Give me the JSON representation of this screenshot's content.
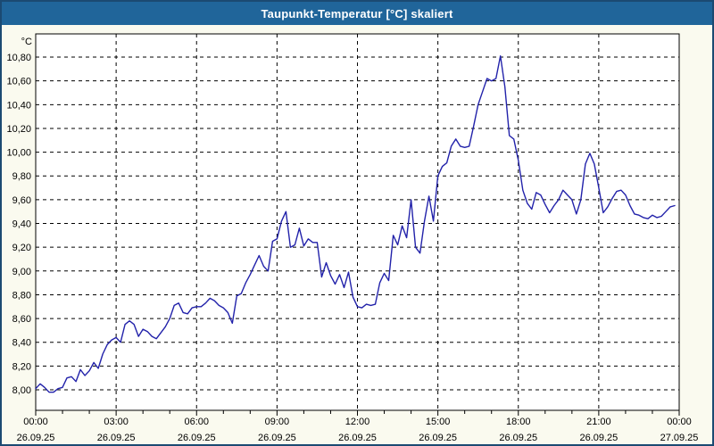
{
  "window": {
    "title": "Taupunkt-Temperatur [°C] skaliert"
  },
  "colors": {
    "titlebar_bg": "#20659a",
    "window_border": "#1b4a72",
    "background": "#fafaef",
    "plot_background": "#ffffff",
    "line_color": "#2222aa",
    "grid_color": "#000000",
    "label_color": "#000000",
    "title_text_color": "#ffffff"
  },
  "y_axis": {
    "unit_label": "°C",
    "min": 8.0,
    "max": 10.8,
    "step": 0.2,
    "tick_labels": [
      "8,00",
      "8,20",
      "8,40",
      "8,60",
      "8,80",
      "9,00",
      "9,20",
      "9,40",
      "9,60",
      "9,80",
      "10,00",
      "10,20",
      "10,40",
      "10,60",
      "10,80"
    ]
  },
  "x_axis": {
    "range_hours": 24,
    "major_step_hours": 3,
    "minor_step_hours": 1,
    "major": [
      {
        "time": "00:00",
        "date": "26.09.25"
      },
      {
        "time": "03:00",
        "date": "26.09.25"
      },
      {
        "time": "06:00",
        "date": "26.09.25"
      },
      {
        "time": "09:00",
        "date": "26.09.25"
      },
      {
        "time": "12:00",
        "date": "26.09.25"
      },
      {
        "time": "15:00",
        "date": "26.09.25"
      },
      {
        "time": "18:00",
        "date": "26.09.25"
      },
      {
        "time": "21:00",
        "date": "26.09.25"
      },
      {
        "time": "00:00",
        "date": "27.09.25"
      }
    ]
  },
  "chart_data": {
    "type": "line",
    "title": "Taupunkt-Temperatur [°C] skaliert",
    "xlabel": "",
    "ylabel": "°C",
    "ylim": [
      8.0,
      10.8
    ],
    "xlim_hours": [
      0,
      24
    ],
    "grid": true,
    "legend": "none",
    "x_start_hours": 0,
    "x_step_minutes": 10,
    "x_end_hours": 23.83,
    "series": [
      {
        "name": "Taupunkt-Temperatur",
        "color": "#2222aa",
        "values": [
          8.01,
          8.05,
          8.02,
          7.98,
          7.98,
          8.01,
          8.02,
          8.1,
          8.11,
          8.07,
          8.17,
          8.12,
          8.16,
          8.23,
          8.18,
          8.3,
          8.38,
          8.42,
          8.44,
          8.4,
          8.55,
          8.58,
          8.55,
          8.45,
          8.51,
          8.49,
          8.45,
          8.43,
          8.48,
          8.53,
          8.6,
          8.71,
          8.73,
          8.65,
          8.64,
          8.69,
          8.7,
          8.7,
          8.73,
          8.77,
          8.75,
          8.71,
          8.69,
          8.65,
          8.56,
          8.79,
          8.81,
          8.9,
          8.97,
          9.05,
          9.13,
          9.04,
          9.0,
          9.25,
          9.27,
          9.42,
          9.5,
          9.2,
          9.22,
          9.36,
          9.21,
          9.27,
          9.24,
          9.24,
          8.95,
          9.07,
          8.96,
          8.89,
          8.97,
          8.86,
          8.99,
          8.78,
          8.7,
          8.69,
          8.72,
          8.71,
          8.72,
          8.9,
          8.98,
          8.92,
          9.3,
          9.22,
          9.38,
          9.28,
          9.6,
          9.2,
          9.15,
          9.42,
          9.63,
          9.42,
          9.8,
          9.88,
          9.91,
          10.05,
          10.11,
          10.05,
          10.04,
          10.05,
          10.22,
          10.4,
          10.51,
          10.62,
          10.6,
          10.62,
          10.81,
          10.55,
          10.14,
          10.11,
          9.93,
          9.68,
          9.57,
          9.52,
          9.66,
          9.64,
          9.56,
          9.49,
          9.55,
          9.6,
          9.68,
          9.64,
          9.6,
          9.48,
          9.6,
          9.9,
          9.99,
          9.9,
          9.7,
          9.49,
          9.54,
          9.61,
          9.67,
          9.68,
          9.64,
          9.55,
          9.48,
          9.47,
          9.45,
          9.44,
          9.47,
          9.45,
          9.46,
          9.5,
          9.54,
          9.55
        ]
      }
    ]
  }
}
